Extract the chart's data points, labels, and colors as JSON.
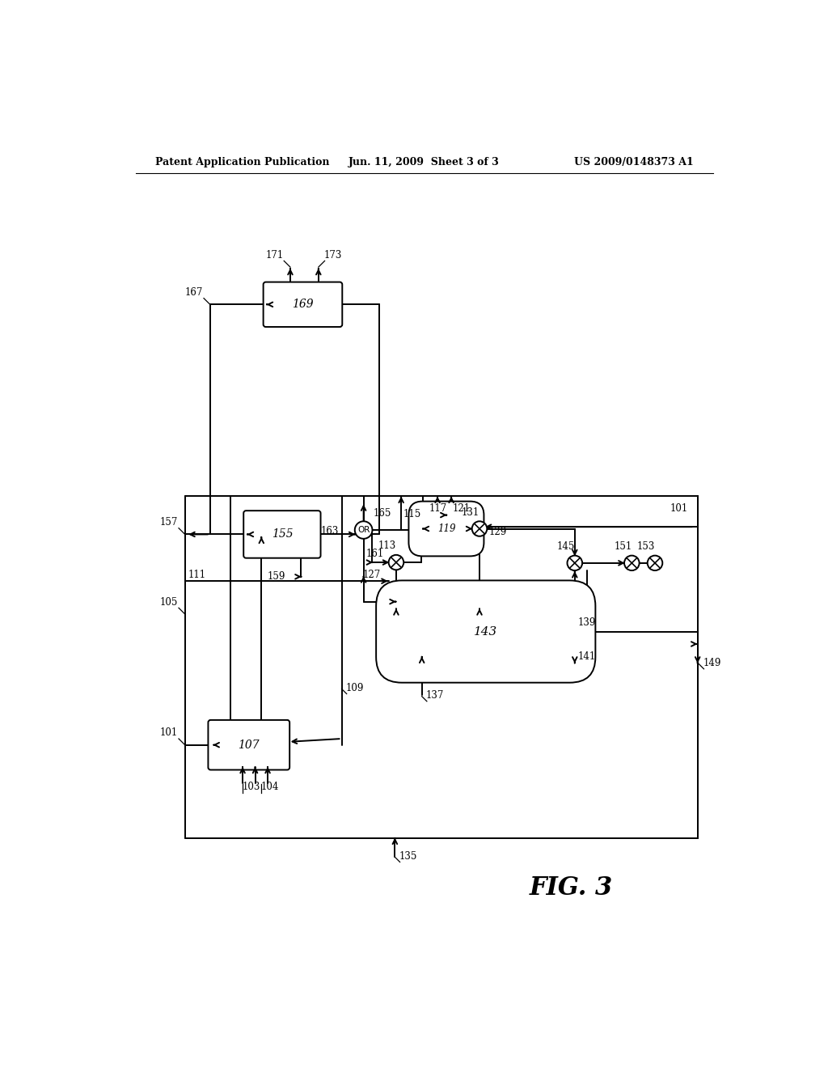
{
  "bg_color": "#ffffff",
  "line_color": "#000000",
  "header_left": "Patent Application Publication",
  "header_mid": "Jun. 11, 2009  Sheet 3 of 3",
  "header_right": "US 2009/0148373 A1",
  "figure_label": "FIG. 3"
}
